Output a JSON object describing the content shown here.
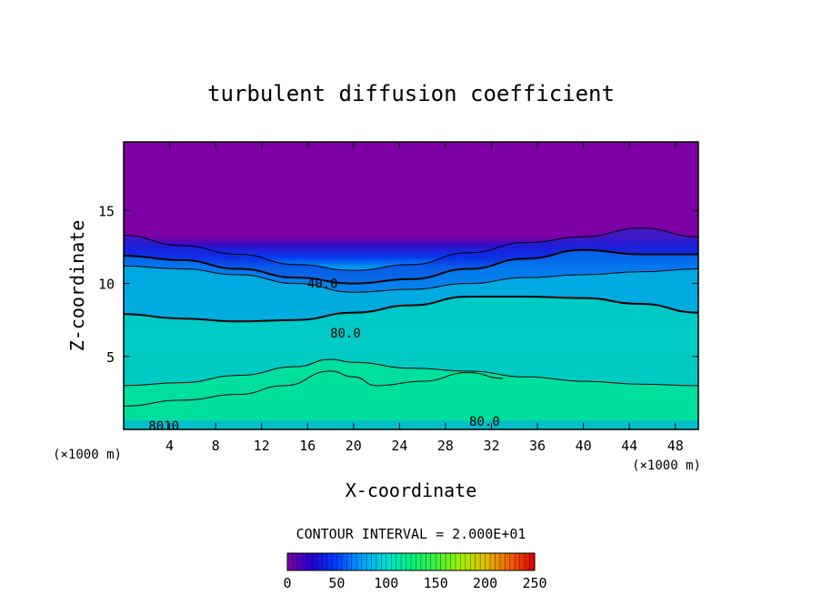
{
  "chart_data": {
    "type": "heatmap",
    "title": "turbulent diffusion coefficient",
    "xlabel": "X-coordinate",
    "ylabel": "Z-coordinate",
    "x_unit_left": "(×1000 m)",
    "x_unit_right": "(×1000 m)",
    "xlim": [
      0,
      50
    ],
    "ylim": [
      0,
      19.7
    ],
    "x_ticks": [
      "4",
      "8",
      "12",
      "16",
      "20",
      "24",
      "28",
      "32",
      "36",
      "40",
      "44",
      "48"
    ],
    "x_tick_values": [
      4,
      8,
      12,
      16,
      20,
      24,
      28,
      32,
      36,
      40,
      44,
      48
    ],
    "y_ticks": [
      "5",
      "10",
      "15"
    ],
    "y_tick_values": [
      5,
      10,
      15
    ],
    "contour_interval_text": "CONTOUR INTERVAL = 2.000E+01",
    "contour_labels": [
      {
        "text": "40.0",
        "x": 17.3,
        "z": 10.0
      },
      {
        "text": "80.0",
        "x": 19.3,
        "z": 6.6
      },
      {
        "text": "80.0",
        "x": 31.4,
        "z": 0.55
      },
      {
        "text": "8010",
        "x": 3.5,
        "z": 0.25
      }
    ],
    "contours": [
      {
        "level": 20,
        "points": [
          [
            0,
            13.3
          ],
          [
            5,
            12.6
          ],
          [
            10,
            12.0
          ],
          [
            15,
            11.3
          ],
          [
            20,
            10.9
          ],
          [
            25,
            11.3
          ],
          [
            30,
            12.1
          ],
          [
            35,
            12.8
          ],
          [
            40,
            13.2
          ],
          [
            45,
            13.8
          ],
          [
            50,
            13.2
          ]
        ]
      },
      {
        "level": 40,
        "points": [
          [
            0,
            11.9
          ],
          [
            5,
            11.6
          ],
          [
            10,
            11.0
          ],
          [
            15,
            10.4
          ],
          [
            20,
            10.0
          ],
          [
            25,
            10.3
          ],
          [
            30,
            11.0
          ],
          [
            35,
            11.7
          ],
          [
            40,
            12.3
          ],
          [
            45,
            12.0
          ],
          [
            50,
            12.0
          ]
        ]
      },
      {
        "level": 60,
        "points": [
          [
            0,
            11.2
          ],
          [
            5,
            11.0
          ],
          [
            10,
            10.6
          ],
          [
            15,
            10.0
          ],
          [
            20,
            9.4
          ],
          [
            25,
            9.6
          ],
          [
            30,
            10.0
          ],
          [
            35,
            10.4
          ],
          [
            40,
            10.6
          ],
          [
            45,
            10.8
          ],
          [
            50,
            11.0
          ]
        ]
      },
      {
        "level": 80,
        "points": [
          [
            0,
            7.9
          ],
          [
            5,
            7.6
          ],
          [
            10,
            7.4
          ],
          [
            15,
            7.5
          ],
          [
            20,
            8.0
          ],
          [
            25,
            8.5
          ],
          [
            30,
            9.1
          ],
          [
            35,
            9.1
          ],
          [
            40,
            9.0
          ],
          [
            45,
            8.6
          ],
          [
            50,
            8.0
          ]
        ]
      },
      {
        "level": 100,
        "points": [
          [
            0,
            3.0
          ],
          [
            5,
            3.2
          ],
          [
            10,
            3.7
          ],
          [
            15,
            4.3
          ],
          [
            18,
            4.8
          ],
          [
            20,
            4.6
          ],
          [
            25,
            4.2
          ],
          [
            30,
            4.0
          ],
          [
            35,
            3.6
          ],
          [
            40,
            3.3
          ],
          [
            45,
            3.1
          ],
          [
            50,
            3.0
          ]
        ]
      },
      {
        "level": 100,
        "points": [
          [
            0,
            1.6
          ],
          [
            5,
            2.0
          ],
          [
            10,
            2.4
          ],
          [
            14,
            3.0
          ],
          [
            18,
            4.0
          ],
          [
            20,
            3.6
          ],
          [
            22,
            3.0
          ],
          [
            26,
            3.3
          ],
          [
            30,
            3.9
          ],
          [
            33,
            3.5
          ]
        ]
      }
    ],
    "shading": [
      {
        "band": "0-20",
        "z_from": 13.5,
        "color": "#7c00a4"
      },
      {
        "band": "20-40",
        "z_from": 12.0,
        "color": "#1020d8"
      },
      {
        "band": "40-60",
        "z_from": 10.6,
        "color": "#00a0f0"
      },
      {
        "band": "60-80",
        "z_from": 8.8,
        "color": "#00d0d8"
      },
      {
        "band": "80-100",
        "z_from": 6.0,
        "color": "#00e0b0"
      },
      {
        "band": "100-120",
        "z_from": 3.0,
        "color": "#00f080"
      },
      {
        "band": "120-140",
        "z_from": 1.0,
        "color": "#40f040"
      }
    ],
    "colorbar": {
      "min": 0,
      "max": 250,
      "tick_labels": [
        "0",
        "50",
        "100",
        "150",
        "200",
        "250"
      ],
      "tick_values": [
        0,
        50,
        100,
        150,
        200,
        250
      ],
      "colors": [
        "#7c00a4",
        "#2000d0",
        "#0040ff",
        "#00a0ff",
        "#00e0d0",
        "#00f080",
        "#40f040",
        "#a0f000",
        "#e0c000",
        "#f06000",
        "#e00000"
      ]
    },
    "grid": false,
    "legend": "none"
  }
}
